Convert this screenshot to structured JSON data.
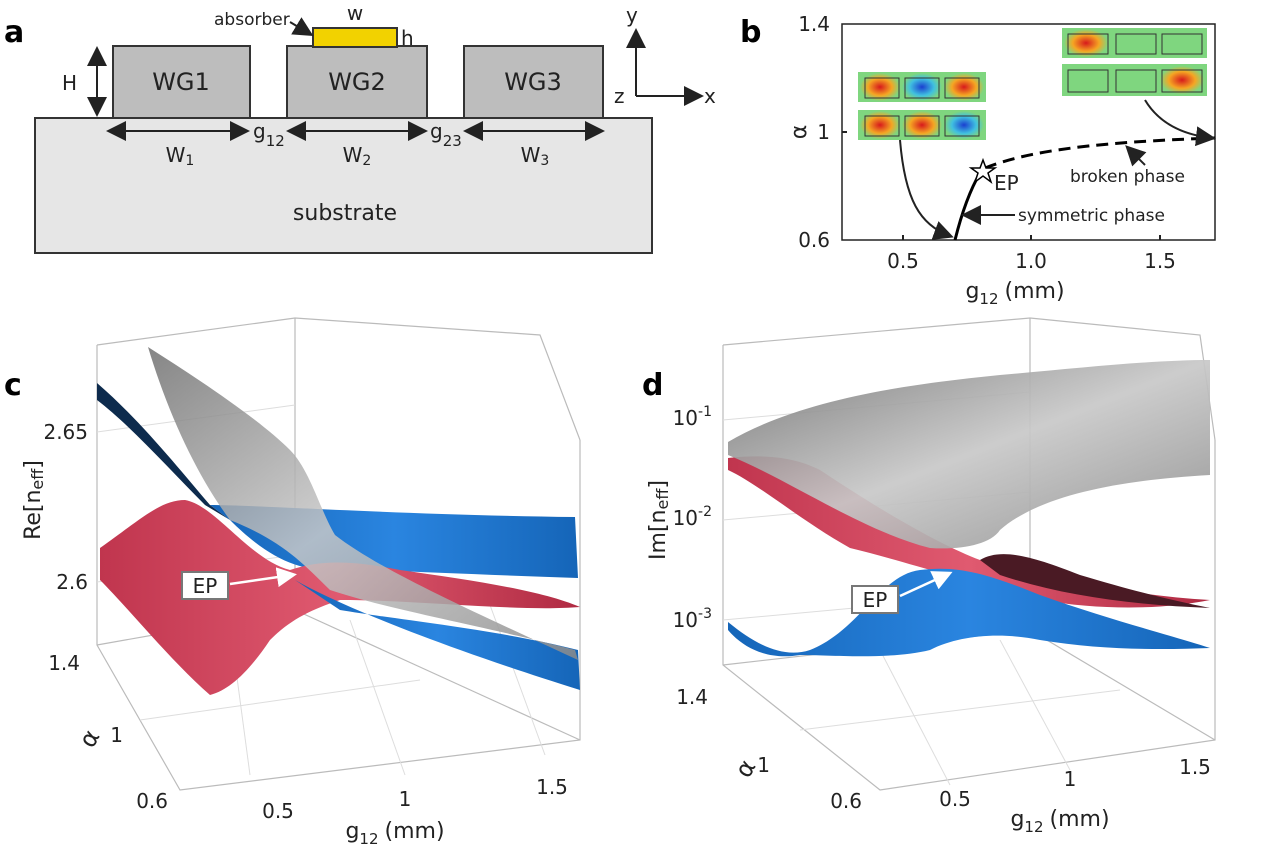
{
  "panel_a": {
    "label": "a",
    "absorber": "absorber",
    "w": "w",
    "h": "h",
    "H": "H",
    "waveguides": [
      "WG1",
      "WG2",
      "WG3"
    ],
    "widths": [
      {
        "base": "W",
        "sub": "1"
      },
      {
        "base": "W",
        "sub": "2"
      },
      {
        "base": "W",
        "sub": "3"
      }
    ],
    "gaps": [
      {
        "base": "g",
        "sub": "12"
      },
      {
        "base": "g",
        "sub": "23"
      }
    ],
    "substrate": "substrate",
    "axes": [
      "y",
      "x",
      "z"
    ]
  },
  "panel_b": {
    "label": "b",
    "y_label": "α",
    "x_label": {
      "base": "g",
      "sub": "12",
      "unit": "(mm)"
    },
    "y_ticks": [
      "0.6",
      "1",
      "1.4"
    ],
    "x_ticks": [
      "0.5",
      "1.0",
      "1.5"
    ],
    "annotations": [
      "EP",
      "symmetric phase",
      "broken phase"
    ]
  },
  "panel_c": {
    "label": "c",
    "z_label": {
      "base": "Re[n",
      "sub": "eff",
      "end": "]"
    },
    "z_ticks": [
      "2.6",
      "2.65"
    ],
    "alpha_ticks": [
      "0.6",
      "1",
      "1.4"
    ],
    "alpha_label": "α",
    "x_ticks": [
      "0.5",
      "1",
      "1.5"
    ],
    "x_label": {
      "base": "g",
      "sub": "12",
      "unit": "(mm)"
    },
    "ep": "EP"
  },
  "panel_d": {
    "label": "d",
    "z_label": {
      "base": "Im[n",
      "sub": "eff",
      "end": "]"
    },
    "z_ticks": [
      {
        "base": "10",
        "exp": "-1"
      },
      {
        "base": "10",
        "exp": "-2"
      },
      {
        "base": "10",
        "exp": "-3"
      }
    ],
    "alpha_ticks": [
      "0.6",
      "1",
      "1.4"
    ],
    "alpha_label": "α",
    "x_ticks": [
      "0.5",
      "1",
      "1.5"
    ],
    "x_label": {
      "base": "g",
      "sub": "12",
      "unit": "(mm)"
    },
    "ep": "EP"
  }
}
